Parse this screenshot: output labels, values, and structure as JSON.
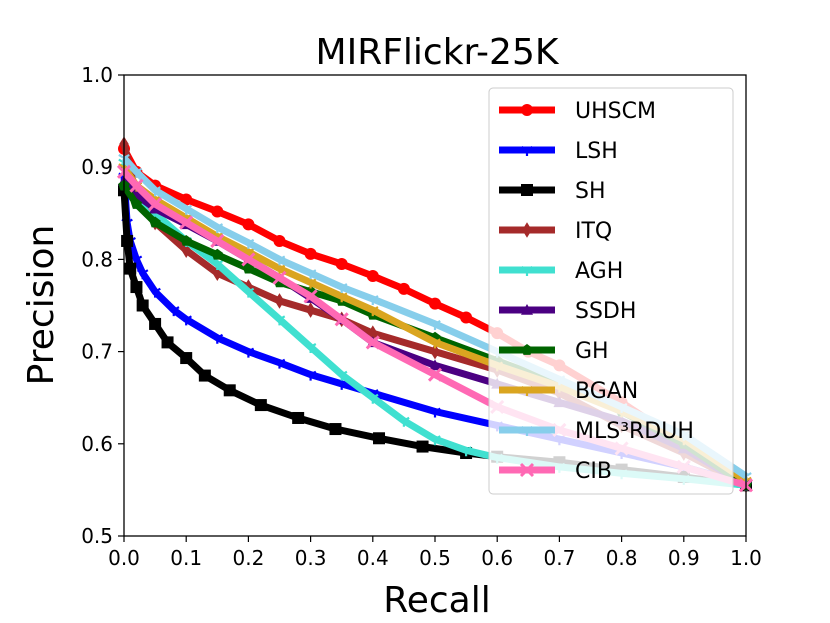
{
  "chart_data": {
    "type": "line",
    "title": "MIRFlickr-25K",
    "xlabel": "Recall",
    "ylabel": "Precision",
    "xlim": [
      0.0,
      1.0
    ],
    "ylim": [
      0.5,
      1.0
    ],
    "xticks": [
      "0.0",
      "0.1",
      "0.2",
      "0.3",
      "0.4",
      "0.5",
      "0.6",
      "0.7",
      "0.8",
      "0.9",
      "1.0"
    ],
    "yticks": [
      "0.5",
      "0.6",
      "0.7",
      "0.8",
      "0.9",
      "1.0"
    ],
    "legend_position": "top-right",
    "series": [
      {
        "name": "UHSCM",
        "color": "#ff0000",
        "marker": "circle",
        "x": [
          0.0,
          0.02,
          0.05,
          0.1,
          0.15,
          0.2,
          0.25,
          0.3,
          0.35,
          0.4,
          0.45,
          0.5,
          0.55,
          0.6,
          0.65,
          0.7,
          0.8,
          0.9,
          1.0
        ],
        "y": [
          0.92,
          0.895,
          0.88,
          0.865,
          0.852,
          0.838,
          0.82,
          0.806,
          0.795,
          0.782,
          0.768,
          0.752,
          0.737,
          0.72,
          0.7,
          0.685,
          0.645,
          0.6,
          0.555
        ]
      },
      {
        "name": "LSH",
        "color": "#0000ff",
        "marker": "tri",
        "x": [
          0.0,
          0.005,
          0.01,
          0.02,
          0.03,
          0.05,
          0.08,
          0.1,
          0.15,
          0.2,
          0.25,
          0.3,
          0.35,
          0.4,
          0.5,
          0.6,
          0.7,
          0.8,
          0.9,
          1.0
        ],
        "y": [
          0.89,
          0.84,
          0.82,
          0.8,
          0.785,
          0.765,
          0.745,
          0.735,
          0.715,
          0.7,
          0.688,
          0.675,
          0.665,
          0.655,
          0.635,
          0.62,
          0.605,
          0.59,
          0.575,
          0.556
        ]
      },
      {
        "name": "SH",
        "color": "#000000",
        "marker": "square",
        "x": [
          0.0,
          0.005,
          0.01,
          0.02,
          0.03,
          0.05,
          0.07,
          0.1,
          0.13,
          0.17,
          0.22,
          0.28,
          0.34,
          0.41,
          0.48,
          0.55,
          0.6,
          0.7,
          0.8,
          0.9,
          1.0
        ],
        "y": [
          0.875,
          0.82,
          0.79,
          0.77,
          0.75,
          0.73,
          0.71,
          0.693,
          0.674,
          0.658,
          0.642,
          0.628,
          0.616,
          0.606,
          0.597,
          0.59,
          0.586,
          0.58,
          0.572,
          0.564,
          0.555
        ]
      },
      {
        "name": "ITQ",
        "color": "#a52a2a",
        "marker": "diamond",
        "x": [
          0.0,
          0.02,
          0.05,
          0.1,
          0.15,
          0.2,
          0.25,
          0.3,
          0.35,
          0.4,
          0.5,
          0.6,
          0.7,
          0.8,
          0.9,
          1.0
        ],
        "y": [
          0.925,
          0.87,
          0.84,
          0.81,
          0.785,
          0.77,
          0.755,
          0.745,
          0.735,
          0.72,
          0.7,
          0.68,
          0.655,
          0.62,
          0.59,
          0.555
        ]
      },
      {
        "name": "AGH",
        "color": "#40e0d0",
        "marker": "tri",
        "x": [
          0.0,
          0.02,
          0.05,
          0.1,
          0.15,
          0.2,
          0.25,
          0.3,
          0.35,
          0.4,
          0.45,
          0.5,
          0.55,
          0.6,
          0.7,
          0.8,
          0.9,
          1.0
        ],
        "y": [
          0.905,
          0.87,
          0.85,
          0.82,
          0.795,
          0.765,
          0.735,
          0.705,
          0.675,
          0.65,
          0.625,
          0.605,
          0.593,
          0.585,
          0.575,
          0.568,
          0.562,
          0.555
        ]
      },
      {
        "name": "SSDH",
        "color": "#4b0082",
        "marker": "uptri",
        "x": [
          0.0,
          0.02,
          0.05,
          0.1,
          0.15,
          0.2,
          0.25,
          0.3,
          0.35,
          0.4,
          0.5,
          0.6,
          0.7,
          0.8,
          0.9,
          1.0
        ],
        "y": [
          0.885,
          0.87,
          0.855,
          0.838,
          0.82,
          0.8,
          0.78,
          0.758,
          0.735,
          0.71,
          0.685,
          0.665,
          0.645,
          0.625,
          0.595,
          0.555
        ]
      },
      {
        "name": "GH",
        "color": "#006400",
        "marker": "pentagon",
        "x": [
          0.0,
          0.02,
          0.05,
          0.1,
          0.15,
          0.2,
          0.25,
          0.3,
          0.35,
          0.4,
          0.5,
          0.6,
          0.7,
          0.8,
          0.9,
          1.0
        ],
        "y": [
          0.88,
          0.86,
          0.84,
          0.82,
          0.805,
          0.79,
          0.775,
          0.765,
          0.755,
          0.74,
          0.715,
          0.69,
          0.665,
          0.635,
          0.6,
          0.555
        ]
      },
      {
        "name": "BGAN",
        "color": "#daa520",
        "marker": "tri",
        "x": [
          0.0,
          0.02,
          0.05,
          0.1,
          0.15,
          0.2,
          0.25,
          0.3,
          0.35,
          0.4,
          0.5,
          0.6,
          0.7,
          0.8,
          0.9,
          1.0
        ],
        "y": [
          0.9,
          0.88,
          0.865,
          0.845,
          0.825,
          0.808,
          0.79,
          0.775,
          0.76,
          0.745,
          0.71,
          0.685,
          0.662,
          0.635,
          0.605,
          0.56
        ]
      },
      {
        "name": "MLS³RDUH",
        "color": "#87ceeb",
        "marker": "tri",
        "x": [
          0.0,
          0.02,
          0.05,
          0.1,
          0.15,
          0.2,
          0.25,
          0.3,
          0.35,
          0.4,
          0.5,
          0.6,
          0.7,
          0.8,
          0.9,
          1.0
        ],
        "y": [
          0.91,
          0.895,
          0.875,
          0.855,
          0.835,
          0.818,
          0.8,
          0.785,
          0.77,
          0.757,
          0.73,
          0.7,
          0.67,
          0.64,
          0.61,
          0.565
        ]
      },
      {
        "name": "CIB",
        "color": "#ff69b4",
        "marker": "x",
        "x": [
          0.0,
          0.02,
          0.05,
          0.1,
          0.15,
          0.2,
          0.25,
          0.3,
          0.35,
          0.4,
          0.5,
          0.6,
          0.7,
          0.8,
          0.9,
          1.0
        ],
        "y": [
          0.895,
          0.88,
          0.86,
          0.84,
          0.82,
          0.8,
          0.78,
          0.76,
          0.735,
          0.71,
          0.675,
          0.64,
          0.615,
          0.595,
          0.575,
          0.555
        ]
      }
    ]
  }
}
